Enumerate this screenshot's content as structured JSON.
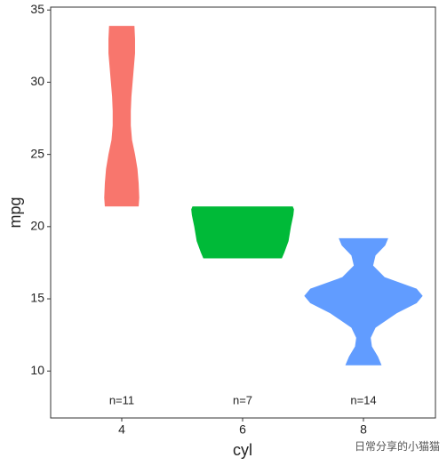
{
  "chart_data": {
    "type": "violin",
    "x_label": "cyl",
    "y_label": "mpg",
    "categories": [
      "4",
      "6",
      "8"
    ],
    "ylim": [
      6.75,
      35.2
    ],
    "yticks": [
      10,
      15,
      20,
      25,
      30,
      35
    ],
    "series": [
      {
        "name": "4",
        "color": "#F8766D",
        "count_label": "n=11",
        "density_y": [
          21.4,
          22,
          23,
          24,
          25,
          26,
          27,
          28,
          29,
          30,
          31,
          32,
          33,
          33.9
        ],
        "density_width": [
          0.28,
          0.29,
          0.28,
          0.26,
          0.22,
          0.17,
          0.15,
          0.15,
          0.16,
          0.18,
          0.2,
          0.22,
          0.22,
          0.21
        ]
      },
      {
        "name": "6",
        "color": "#00BA38",
        "count_label": "n=7",
        "density_y": [
          17.8,
          18.2,
          19,
          20,
          20.8,
          21.2,
          21.4
        ],
        "density_width": [
          0.65,
          0.69,
          0.76,
          0.8,
          0.84,
          0.85,
          0.83
        ]
      },
      {
        "name": "8",
        "color": "#619CFF",
        "count_label": "n=14",
        "density_y": [
          10.4,
          11,
          11.7,
          12.3,
          13,
          14,
          14.7,
          15.2,
          15.7,
          16.5,
          17.3,
          18,
          18.7,
          19.2
        ],
        "density_width": [
          0.3,
          0.24,
          0.14,
          0.12,
          0.2,
          0.55,
          0.88,
          0.98,
          0.88,
          0.35,
          0.16,
          0.2,
          0.36,
          0.41
        ]
      }
    ],
    "watermark": "日常分享的小猫猫"
  }
}
